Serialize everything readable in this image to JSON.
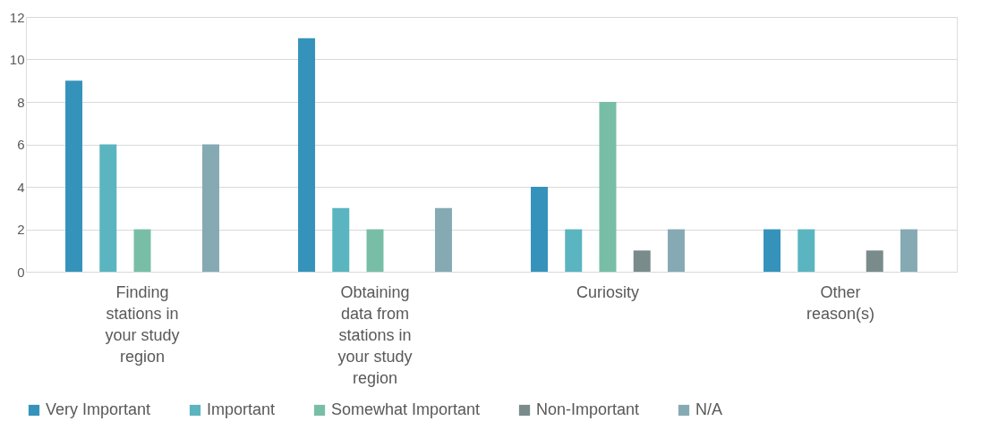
{
  "chart_data": {
    "type": "bar",
    "categories": [
      "Finding stations in your study region",
      "Obtaining data from stations in your study region",
      "Curiosity",
      "Other reason(s)"
    ],
    "series": [
      {
        "name": "Very Important",
        "color": "#3593bb",
        "values": [
          9,
          11,
          4,
          2
        ]
      },
      {
        "name": "Important",
        "color": "#5ab5c0",
        "values": [
          6,
          3,
          2,
          2
        ]
      },
      {
        "name": "Somewhat Important",
        "color": "#78bea6",
        "values": [
          2,
          2,
          8,
          null
        ]
      },
      {
        "name": "Non-Important",
        "color": "#7a8b8c",
        "values": [
          null,
          null,
          1,
          1
        ]
      },
      {
        "name": "N/A",
        "color": "#86aab3",
        "values": [
          6,
          3,
          2,
          2
        ]
      }
    ],
    "ylim": [
      0,
      12
    ],
    "yticks": [
      0,
      2,
      4,
      6,
      8,
      10,
      12
    ],
    "grid": "y",
    "legend": "bottom"
  }
}
